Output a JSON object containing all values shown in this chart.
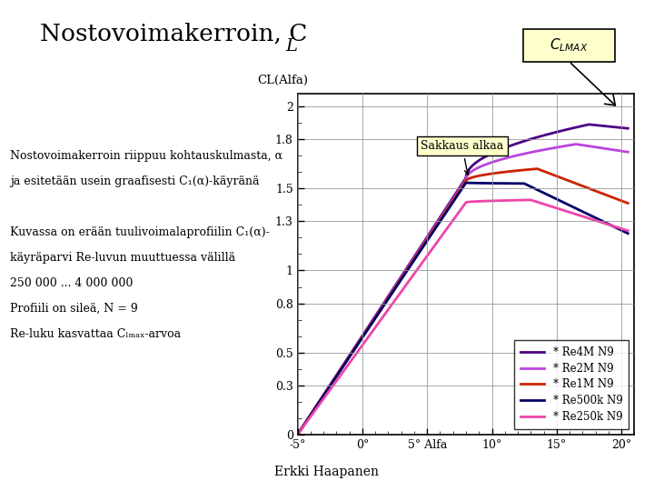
{
  "title_main": "Nostovoimakerroin, C",
  "title_sub": "L",
  "ylabel": "CL(Alfa)",
  "xlabel_ticks": [
    "-5°",
    "0°",
    "5° Alfa",
    "10°",
    "15°",
    "20°"
  ],
  "xlabel_vals": [
    -5,
    0,
    5,
    10,
    15,
    20
  ],
  "ylim": [
    0.0,
    2.08
  ],
  "xlim": [
    -5,
    21
  ],
  "yticks": [
    0.0,
    0.3,
    0.5,
    0.8,
    1.0,
    1.3,
    1.5,
    1.8,
    2.0
  ],
  "bg_color": "#ffffff",
  "grid_color": "#999999",
  "left_text_lines": [
    "Nostovoimakerroin riippuu kohtauskulmasta, α",
    "ja esitetään usein graafisesti C₁(α)-käyränä",
    "",
    "Kuvassa on erään tuulivoimalaprofiilin C₁(α)-",
    "käyräparvi Re-luvun muuttuessa välillä",
    "250 000 ... 4 000 000",
    "Profiili on sileä, N = 9",
    "Re-luku kasvattaa C_{LMAX}-arvoa"
  ],
  "footer": "Erkki Haapanen",
  "series": [
    {
      "label": "* Re4M N9",
      "color": "#4b0082",
      "lw": 2.0,
      "peak_x": 17.5,
      "peak_cl": 1.89,
      "post_drop": 0.008,
      "split_x": 8.0,
      "split_cl": 1.565
    },
    {
      "label": "* Re2M N9",
      "color": "#bb44dd",
      "lw": 2.0,
      "peak_x": 16.5,
      "peak_cl": 1.77,
      "post_drop": 0.012,
      "split_x": 8.0,
      "split_cl": 1.555
    },
    {
      "label": "* Re1M N9",
      "color": "#cc2200",
      "lw": 2.0,
      "peak_x": 13.5,
      "peak_cl": 1.62,
      "post_drop": 0.03,
      "split_x": 8.0,
      "split_cl": 1.545
    },
    {
      "label": "* Re500k N9",
      "color": "#000066",
      "lw": 2.0,
      "peak_x": 12.5,
      "peak_cl": 1.53,
      "post_drop": 0.038,
      "split_x": 8.0,
      "split_cl": 1.535
    },
    {
      "label": "* Re250k N9",
      "color": "#ee44aa",
      "lw": 2.0,
      "peak_x": 13.0,
      "peak_cl": 1.43,
      "post_drop": 0.025,
      "split_x": 8.0,
      "split_cl": 1.415
    }
  ]
}
